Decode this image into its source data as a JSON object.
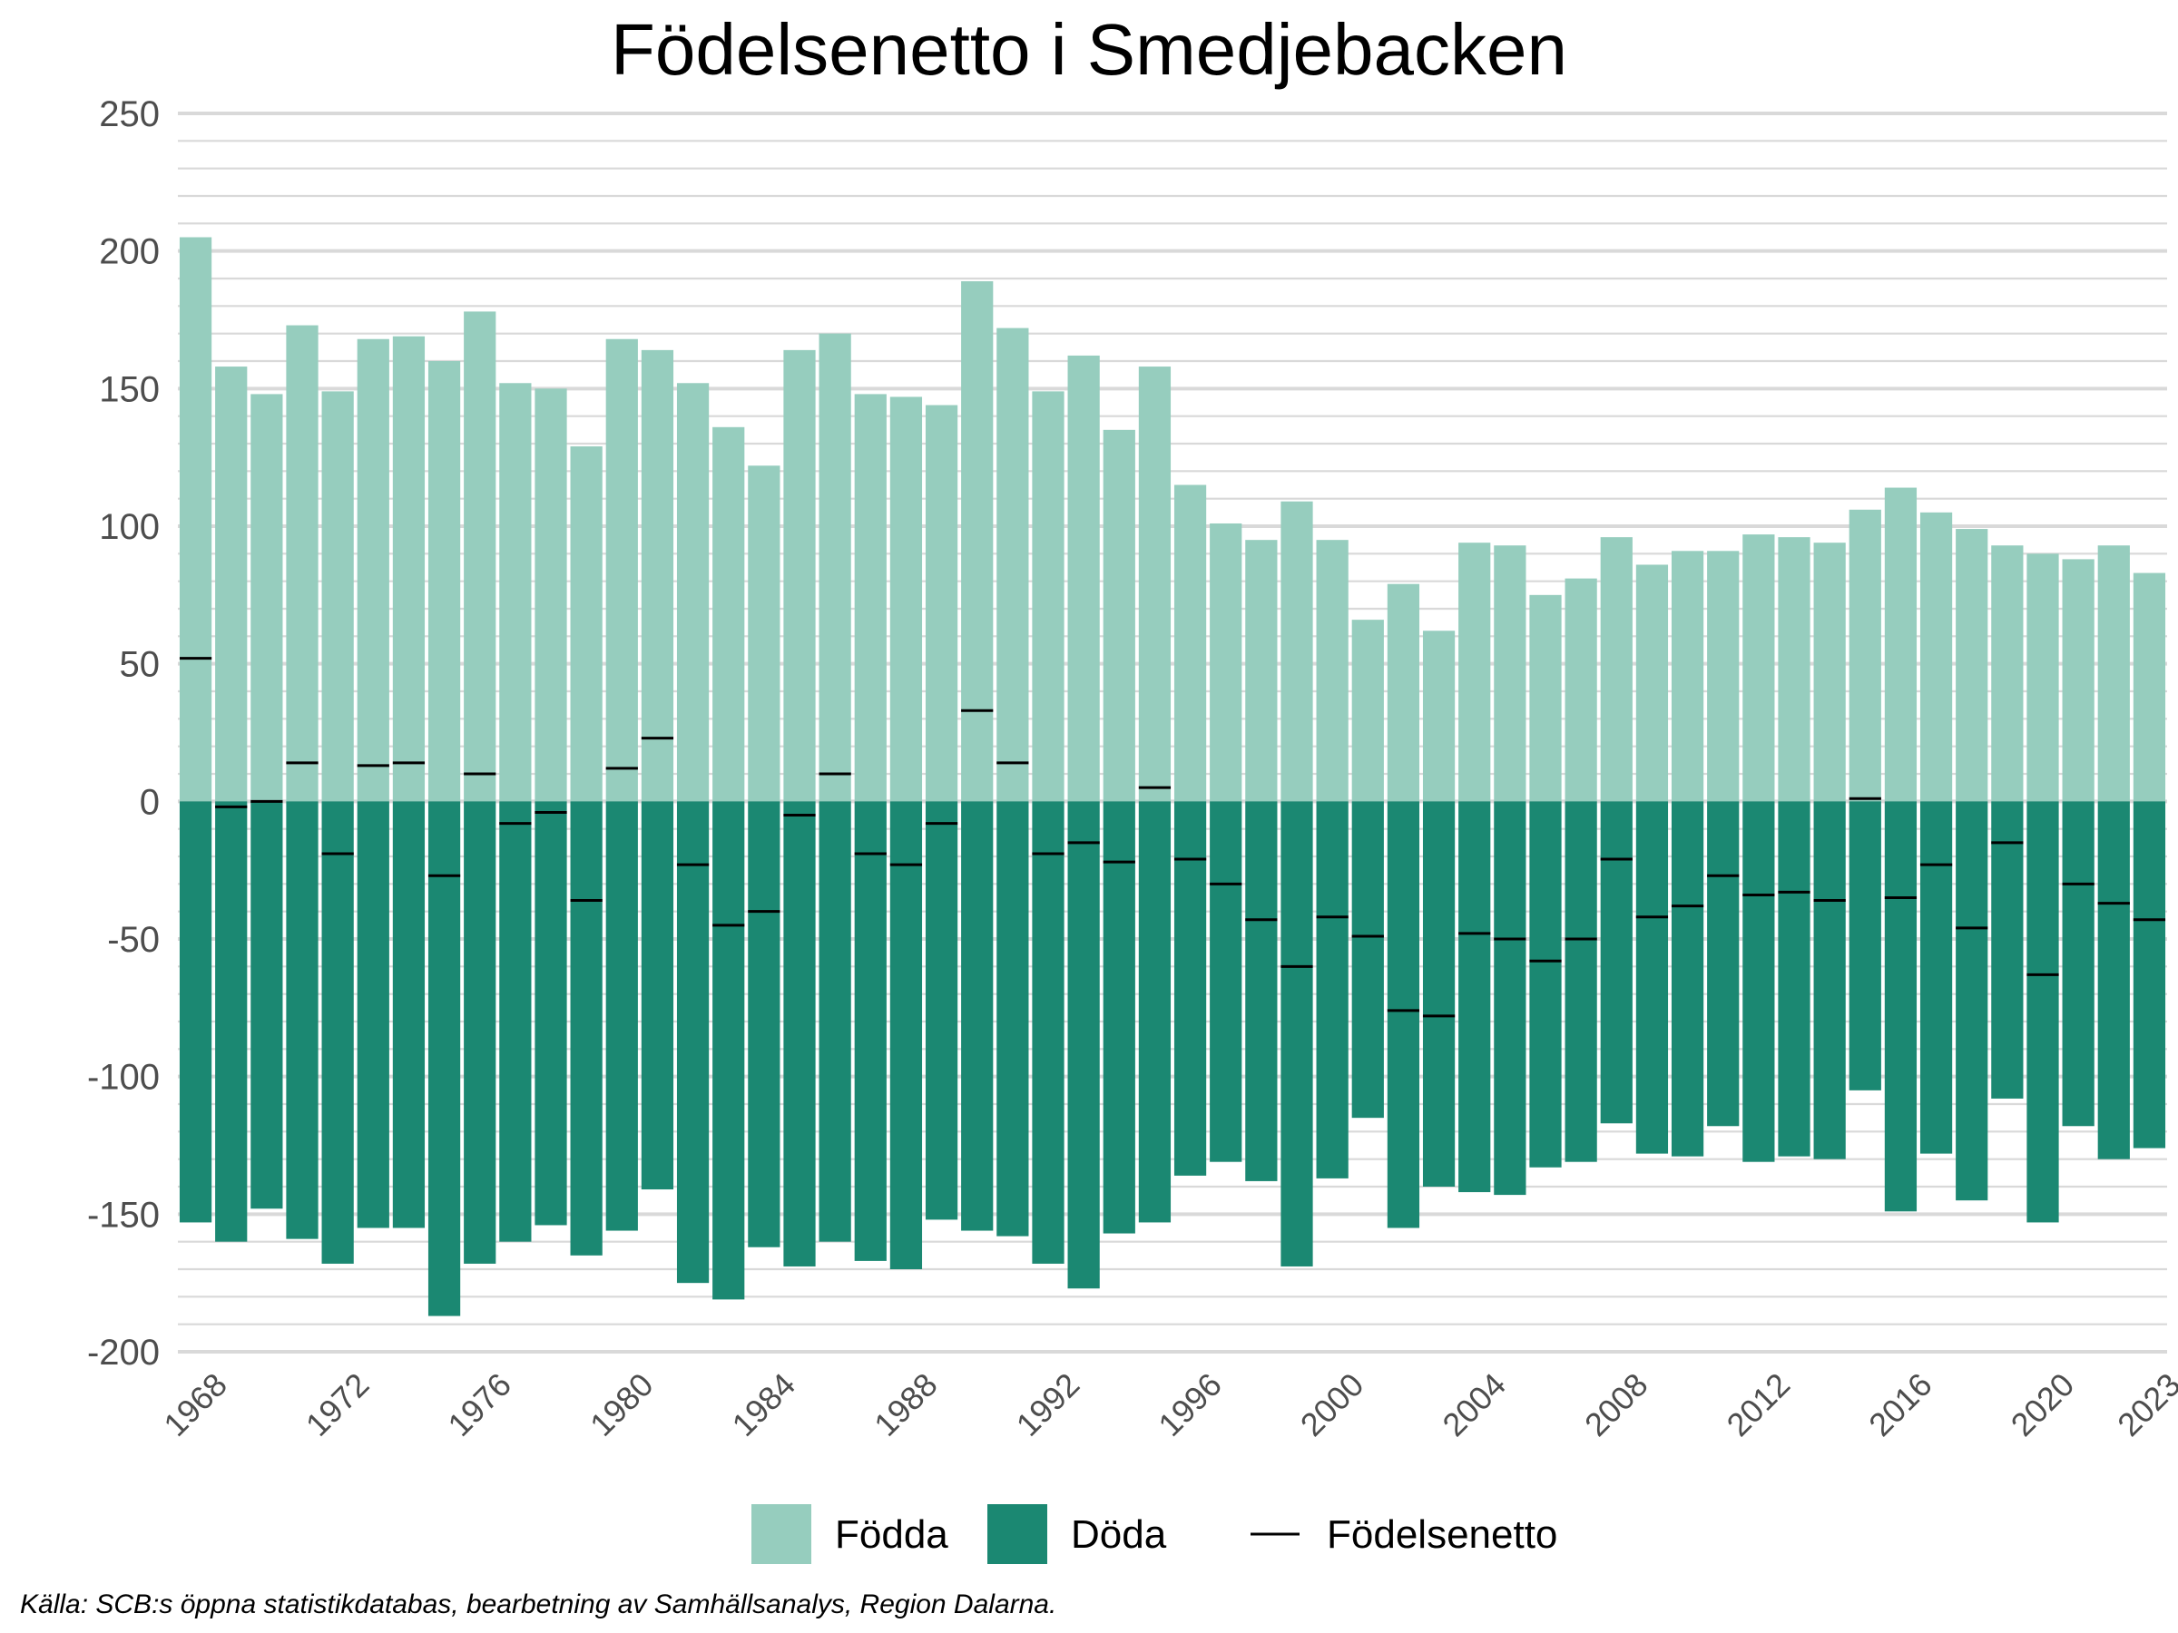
{
  "chart_data": {
    "type": "bar",
    "title": "Födelsenetto i Smedjebacken",
    "caption": "Källa: SCB:s öppna statistikdatabas, bearbetning av Samhällsanalys, Region Dalarna.",
    "xlabel": "",
    "ylabel": "",
    "ylim": [
      -200,
      250
    ],
    "y_major_ticks": [
      -200,
      -150,
      -100,
      -50,
      0,
      50,
      100,
      150,
      200,
      250
    ],
    "grid": true,
    "legend_position": "bottom",
    "x": [
      1968,
      1969,
      1970,
      1971,
      1972,
      1973,
      1974,
      1975,
      1976,
      1977,
      1978,
      1979,
      1980,
      1981,
      1982,
      1983,
      1984,
      1985,
      1986,
      1987,
      1988,
      1989,
      1990,
      1991,
      1992,
      1993,
      1994,
      1995,
      1996,
      1997,
      1998,
      1999,
      2000,
      2001,
      2002,
      2003,
      2004,
      2005,
      2006,
      2007,
      2008,
      2009,
      2010,
      2011,
      2012,
      2013,
      2014,
      2015,
      2016,
      2017,
      2018,
      2019,
      2020,
      2021,
      2022,
      2023
    ],
    "x_tick_labels": [
      "1968",
      "1972",
      "1976",
      "1980",
      "1984",
      "1988",
      "1992",
      "1996",
      "2000",
      "2004",
      "2008",
      "2012",
      "2016",
      "2020",
      "2023"
    ],
    "series": [
      {
        "name": "Födda",
        "kind": "bar",
        "color": "#96cdbe",
        "values": [
          205,
          158,
          148,
          173,
          149,
          168,
          169,
          160,
          178,
          152,
          150,
          129,
          168,
          164,
          152,
          136,
          122,
          164,
          170,
          148,
          147,
          144,
          189,
          172,
          149,
          162,
          135,
          158,
          115,
          101,
          95,
          109,
          95,
          66,
          79,
          62,
          94,
          93,
          75,
          81,
          96,
          86,
          91,
          91,
          97,
          96,
          94,
          106,
          114,
          105,
          99,
          93,
          90,
          88,
          93,
          83
        ]
      },
      {
        "name": "Döda",
        "kind": "bar",
        "color": "#1b8872",
        "values": [
          -153,
          -160,
          -148,
          -159,
          -168,
          -155,
          -155,
          -187,
          -168,
          -160,
          -154,
          -165,
          -156,
          -141,
          -175,
          -181,
          -162,
          -169,
          -160,
          -167,
          -170,
          -152,
          -156,
          -158,
          -168,
          -177,
          -157,
          -153,
          -136,
          -131,
          -138,
          -169,
          -137,
          -115,
          -155,
          -140,
          -142,
          -143,
          -133,
          -131,
          -117,
          -128,
          -129,
          -118,
          -131,
          -129,
          -130,
          -105,
          -149,
          -128,
          -145,
          -108,
          -153,
          -118,
          -130,
          -126
        ]
      },
      {
        "name": "Födelsenetto",
        "kind": "tick",
        "color": "#000000",
        "values": [
          52,
          -2,
          0,
          14,
          -19,
          13,
          14,
          -27,
          10,
          -8,
          -4,
          -36,
          12,
          23,
          -23,
          -45,
          -40,
          -5,
          10,
          -19,
          -23,
          -8,
          33,
          14,
          -19,
          -15,
          -22,
          5,
          -21,
          -30,
          -43,
          -60,
          -42,
          -49,
          -76,
          -78,
          -48,
          -50,
          -58,
          -50,
          -21,
          -42,
          -38,
          -27,
          -34,
          -33,
          -36,
          1,
          -35,
          -23,
          -46,
          -15,
          -63,
          -30,
          -37,
          -43
        ]
      }
    ]
  }
}
